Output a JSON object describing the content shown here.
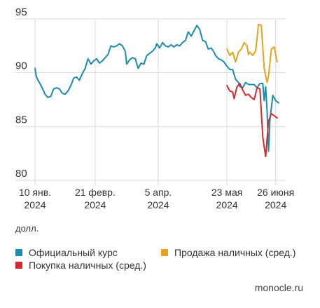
{
  "chart_data": {
    "type": "line",
    "ylim": [
      80,
      95
    ],
    "yticks": [
      80,
      85,
      90,
      95
    ],
    "xlim": [
      "2024-01-10",
      "2024-07-03"
    ],
    "xticks": [
      {
        "date": "2024-01-10",
        "line1": "10 янв.",
        "line2": "2024"
      },
      {
        "date": "2024-02-21",
        "line1": "21 февр.",
        "line2": "2024"
      },
      {
        "date": "2024-04-05",
        "line1": "5 апр.",
        "line2": "2024"
      },
      {
        "date": "2024-05-23",
        "line1": "23 мая",
        "line2": "2024"
      },
      {
        "date": "2024-06-26",
        "line1": "26 июня",
        "line2": "2024"
      }
    ],
    "grid": true,
    "unit_label": "долл.",
    "series": [
      {
        "name": "Официальный курс",
        "color": "#1a8cad",
        "points": [
          [
            "2024-01-10",
            90.4
          ],
          [
            "2024-01-11",
            89.6
          ],
          [
            "2024-01-13",
            89.1
          ],
          [
            "2024-01-15",
            88.6
          ],
          [
            "2024-01-17",
            88.0
          ],
          [
            "2024-01-19",
            87.7
          ],
          [
            "2024-01-21",
            87.8
          ],
          [
            "2024-01-23",
            88.5
          ],
          [
            "2024-01-25",
            88.6
          ],
          [
            "2024-01-27",
            88.5
          ],
          [
            "2024-01-29",
            88.1
          ],
          [
            "2024-01-31",
            88.0
          ],
          [
            "2024-02-02",
            88.3
          ],
          [
            "2024-02-04",
            88.8
          ],
          [
            "2024-02-06",
            89.5
          ],
          [
            "2024-02-08",
            89.6
          ],
          [
            "2024-02-10",
            89.3
          ],
          [
            "2024-02-12",
            89.9
          ],
          [
            "2024-02-14",
            90.4
          ],
          [
            "2024-02-16",
            91.3
          ],
          [
            "2024-02-18",
            90.8
          ],
          [
            "2024-02-20",
            91.1
          ],
          [
            "2024-02-22",
            91.3
          ],
          [
            "2024-02-24",
            90.9
          ],
          [
            "2024-02-26",
            91.1
          ],
          [
            "2024-02-28",
            91.4
          ],
          [
            "2024-03-01",
            91.7
          ],
          [
            "2024-03-03",
            92.5
          ],
          [
            "2024-03-05",
            92.4
          ],
          [
            "2024-03-07",
            92.5
          ],
          [
            "2024-03-09",
            92.7
          ],
          [
            "2024-03-11",
            92.5
          ],
          [
            "2024-03-13",
            92.0
          ],
          [
            "2024-03-14",
            90.8
          ],
          [
            "2024-03-16",
            91.2
          ],
          [
            "2024-03-18",
            91.4
          ],
          [
            "2024-03-20",
            91.3
          ],
          [
            "2024-03-22",
            90.4
          ],
          [
            "2024-03-24",
            90.9
          ],
          [
            "2024-03-26",
            90.8
          ],
          [
            "2024-03-28",
            91.6
          ],
          [
            "2024-03-30",
            91.8
          ],
          [
            "2024-04-01",
            92.0
          ],
          [
            "2024-04-03",
            92.3
          ],
          [
            "2024-04-04",
            92.7
          ],
          [
            "2024-04-06",
            92.3
          ],
          [
            "2024-04-08",
            92.8
          ],
          [
            "2024-04-10",
            92.5
          ],
          [
            "2024-04-12",
            92.4
          ],
          [
            "2024-04-14",
            92.6
          ],
          [
            "2024-04-16",
            92.4
          ],
          [
            "2024-04-18",
            92.6
          ],
          [
            "2024-04-20",
            92.5
          ],
          [
            "2024-04-22",
            92.8
          ],
          [
            "2024-04-24",
            93.0
          ],
          [
            "2024-04-26",
            93.8
          ],
          [
            "2024-04-28",
            93.4
          ],
          [
            "2024-04-30",
            93.9
          ],
          [
            "2024-05-02",
            94.4
          ],
          [
            "2024-05-04",
            94.0
          ],
          [
            "2024-05-06",
            93.0
          ],
          [
            "2024-05-08",
            92.9
          ],
          [
            "2024-05-10",
            92.2
          ],
          [
            "2024-05-12",
            92.3
          ],
          [
            "2024-05-14",
            91.9
          ],
          [
            "2024-05-15",
            91.6
          ],
          [
            "2024-05-17",
            91.3
          ],
          [
            "2024-05-19",
            91.2
          ],
          [
            "2024-05-21",
            91.0
          ],
          [
            "2024-05-23",
            90.6
          ],
          [
            "2024-05-25",
            90.3
          ],
          [
            "2024-05-27",
            90.3
          ],
          [
            "2024-05-29",
            89.4
          ],
          [
            "2024-05-31",
            89.1
          ],
          [
            "2024-06-01",
            88.7
          ],
          [
            "2024-06-03",
            88.6
          ],
          [
            "2024-06-05",
            89.1
          ],
          [
            "2024-06-07",
            88.9
          ],
          [
            "2024-06-09",
            88.9
          ],
          [
            "2024-06-11",
            88.9
          ],
          [
            "2024-06-13",
            88.6
          ],
          [
            "2024-06-15",
            89.0
          ],
          [
            "2024-06-17",
            89.0
          ],
          [
            "2024-06-18",
            87.4
          ],
          [
            "2024-06-19",
            88.7
          ],
          [
            "2024-06-20",
            86.5
          ],
          [
            "2024-06-21",
            82.7
          ],
          [
            "2024-06-22",
            85.6
          ],
          [
            "2024-06-24",
            87.9
          ],
          [
            "2024-06-26",
            87.4
          ],
          [
            "2024-06-28",
            87.2
          ]
        ]
      },
      {
        "name": "Продажа наличных (сред.)",
        "color": "#e8a21c",
        "points": [
          [
            "2024-05-23",
            92.2
          ],
          [
            "2024-05-25",
            91.6
          ],
          [
            "2024-05-27",
            91.9
          ],
          [
            "2024-05-29",
            91.0
          ],
          [
            "2024-05-31",
            91.9
          ],
          [
            "2024-06-02",
            92.2
          ],
          [
            "2024-06-04",
            92.8
          ],
          [
            "2024-06-06",
            92.5
          ],
          [
            "2024-06-07",
            91.7
          ],
          [
            "2024-06-08",
            91.9
          ],
          [
            "2024-06-10",
            91.6
          ],
          [
            "2024-06-12",
            92.0
          ],
          [
            "2024-06-13",
            93.2
          ],
          [
            "2024-06-14",
            94.5
          ],
          [
            "2024-06-16",
            94.4
          ],
          [
            "2024-06-18",
            90.4
          ],
          [
            "2024-06-20",
            89.1
          ],
          [
            "2024-06-21",
            89.7
          ],
          [
            "2024-06-23",
            92.2
          ],
          [
            "2024-06-25",
            92.4
          ],
          [
            "2024-06-27",
            91.0
          ]
        ]
      },
      {
        "name": "Покупка наличных (сред.)",
        "color": "#d42a2e",
        "points": [
          [
            "2024-05-23",
            88.8
          ],
          [
            "2024-05-25",
            88.3
          ],
          [
            "2024-05-27",
            88.2
          ],
          [
            "2024-05-28",
            87.6
          ],
          [
            "2024-05-30",
            88.7
          ],
          [
            "2024-06-01",
            89.0
          ],
          [
            "2024-06-03",
            88.4
          ],
          [
            "2024-06-05",
            87.9
          ],
          [
            "2024-06-07",
            88.0
          ],
          [
            "2024-06-09",
            87.7
          ],
          [
            "2024-06-11",
            87.5
          ],
          [
            "2024-06-13",
            88.6
          ],
          [
            "2024-06-15",
            88.5
          ],
          [
            "2024-06-17",
            84.0
          ],
          [
            "2024-06-19",
            82.2
          ],
          [
            "2024-06-21",
            85.5
          ],
          [
            "2024-06-23",
            86.2
          ],
          [
            "2024-06-25",
            86.0
          ],
          [
            "2024-06-27",
            85.8
          ]
        ]
      }
    ],
    "legend": [
      {
        "name": "Официальный курс",
        "color": "#1a8cad"
      },
      {
        "name": "Продажа наличных (сред.)",
        "color": "#e8a21c"
      },
      {
        "name": "Покупка наличных (сред.)",
        "color": "#d42a2e"
      }
    ]
  },
  "source": "monocle.ru"
}
